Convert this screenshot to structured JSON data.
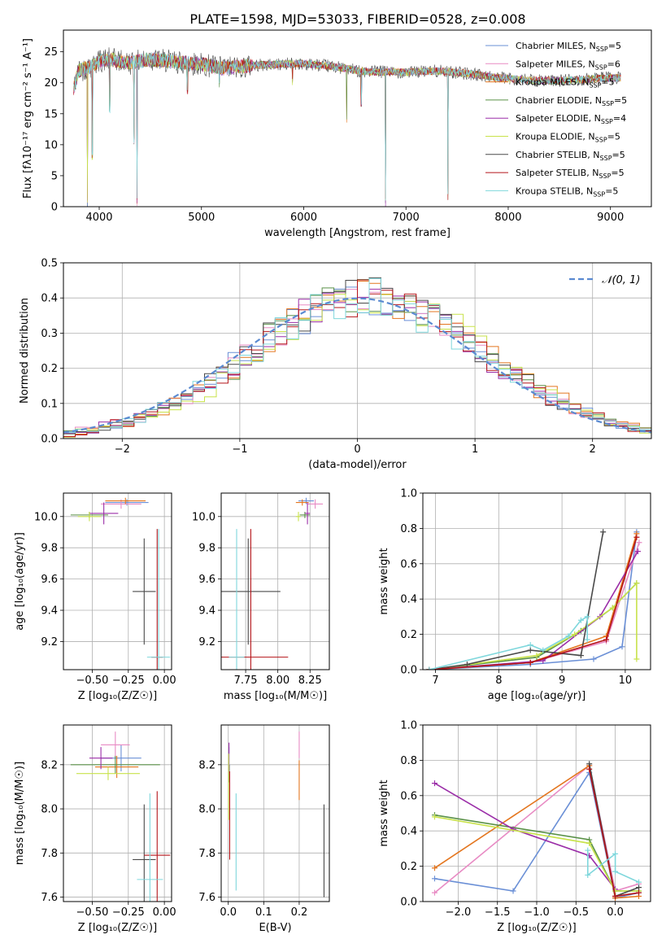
{
  "title": "PLATE=1598, MJD=53033, FIBERID=0528, z=0.008",
  "colors": [
    "#6a8fd6",
    "#e88bc4",
    "#e4761f",
    "#5a9148",
    "#9b2ea8",
    "#c8e24a",
    "#4a4a4a",
    "#b5151a",
    "#7fd7dc"
  ],
  "chart_data": [
    {
      "type": "line",
      "panel": "spectrum",
      "xlabel": "wavelength [Angstrom, rest frame]",
      "ylabel": "Flux [fλ10⁻¹⁷ erg cm⁻² s⁻¹ A⁻¹]",
      "xlim": [
        3650,
        9400
      ],
      "ylim": [
        0,
        28.5
      ],
      "xticks": [
        4000,
        5000,
        6000,
        7000,
        8000,
        9000
      ],
      "yticks": [
        0,
        5,
        10,
        15,
        20,
        25
      ],
      "grid": false,
      "legend_position": "top-right",
      "legend": [
        {
          "label": "Chabrier MILES, N",
          "sub": "SSP",
          "value": "=5"
        },
        {
          "label": "Salpeter MILES, N",
          "sub": "SSP",
          "value": "=6"
        },
        {
          "label": "Kroupa MILES, N",
          "sub": "SSP",
          "value": "=5"
        },
        {
          "label": "Chabrier ELODIE, N",
          "sub": "SSP",
          "value": "=5"
        },
        {
          "label": "Salpeter ELODIE, N",
          "sub": "SSP",
          "value": "=4"
        },
        {
          "label": "Kroupa ELODIE, N",
          "sub": "SSP",
          "value": "=5"
        },
        {
          "label": "Chabrier STELIB, N",
          "sub": "SSP",
          "value": "=5"
        },
        {
          "label": "Salpeter STELIB, N",
          "sub": "SSP",
          "value": "=5"
        },
        {
          "label": "Kroupa STELIB, N",
          "sub": "SSP",
          "value": "=5"
        }
      ],
      "continuum": [
        [
          3750,
          19
        ],
        [
          3800,
          22
        ],
        [
          3900,
          22.5
        ],
        [
          4000,
          23.5
        ],
        [
          4100,
          23.8
        ],
        [
          4300,
          23.2
        ],
        [
          4500,
          23.8
        ],
        [
          4700,
          23.4
        ],
        [
          5000,
          23
        ],
        [
          5200,
          22.3
        ],
        [
          5500,
          22.8
        ],
        [
          5800,
          23
        ],
        [
          6000,
          23.1
        ],
        [
          6300,
          22.6
        ],
        [
          6600,
          21.8
        ],
        [
          7000,
          21.7
        ],
        [
          7300,
          21.9
        ],
        [
          7600,
          21.5
        ],
        [
          7900,
          20.8
        ],
        [
          8200,
          20.4
        ],
        [
          8500,
          20.3
        ],
        [
          8800,
          20.6
        ],
        [
          9000,
          20.8
        ],
        [
          9100,
          20.8
        ]
      ],
      "spikes": [
        [
          3885,
          0
        ],
        [
          3933,
          7.5
        ],
        [
          4101,
          15
        ],
        [
          4340,
          10
        ],
        [
          4370,
          0
        ],
        [
          4861,
          18
        ],
        [
          5175,
          19
        ],
        [
          5890,
          19.5
        ],
        [
          6420,
          13
        ],
        [
          6563,
          15.5
        ],
        [
          6800,
          0
        ],
        [
          7410,
          1
        ]
      ]
    },
    {
      "type": "histogram",
      "panel": "residuals",
      "xlabel": "(data-model)/error",
      "ylabel": "Normed distribution",
      "xlim": [
        -2.5,
        2.5
      ],
      "ylim": [
        0,
        0.5
      ],
      "xticks": [
        -2,
        -1,
        0,
        1,
        2
      ],
      "yticks": [
        0.0,
        0.1,
        0.2,
        0.3,
        0.4,
        0.5
      ],
      "grid": true,
      "legend_position": "top-right",
      "reference_label": "𝒩(0, 1)",
      "bin_width": 0.1
    },
    {
      "type": "scatter",
      "panel": "age-Z",
      "xlabel": "Z [log₁₀(Z/Z☉)]",
      "ylabel": "age  [log₁₀(age/yr)]",
      "xlim": [
        -0.7,
        0.05
      ],
      "ylim": [
        9.02,
        10.15
      ],
      "xticks": [
        -0.5,
        -0.25,
        0.0
      ],
      "yticks": [
        9.2,
        9.4,
        9.6,
        9.8,
        10.0
      ],
      "grid": true,
      "points": [
        {
          "x": -0.26,
          "y": 10.09,
          "ex": 0.15,
          "ey": 0.02
        },
        {
          "x": -0.3,
          "y": 10.08,
          "ex": 0.14,
          "ey": 0.03
        },
        {
          "x": -0.27,
          "y": 10.1,
          "ex": 0.14,
          "ey": 0.02
        },
        {
          "x": -0.52,
          "y": 10.01,
          "ex": 0.13,
          "ey": 0.02
        },
        {
          "x": -0.42,
          "y": 10.02,
          "ex": 0.1,
          "ey": 0.07
        },
        {
          "x": -0.52,
          "y": 10.0,
          "ex": 0.08,
          "ey": 0.03
        },
        {
          "x": -0.14,
          "y": 9.52,
          "ex": 0.08,
          "ey": 0.34
        },
        {
          "x": -0.05,
          "y": 9.1,
          "ex": 0.04,
          "ey": 0.82
        },
        {
          "x": -0.04,
          "y": 9.1,
          "ex": 0.08,
          "ey": 0.82
        }
      ]
    },
    {
      "type": "scatter",
      "panel": "age-mass",
      "xlabel": "mass [log₁₀(M/M☉)]",
      "ylabel": "",
      "xlim": [
        7.56,
        8.4
      ],
      "ylim": [
        9.02,
        10.15
      ],
      "xticks": [
        7.75,
        8.0,
        8.25
      ],
      "yticks": [
        9.2,
        9.4,
        9.6,
        9.8,
        10.0
      ],
      "grid": true,
      "points": [
        {
          "x": 8.22,
          "y": 10.1,
          "ex": 0.06,
          "ey": 0.02
        },
        {
          "x": 8.29,
          "y": 10.08,
          "ex": 0.06,
          "ey": 0.03
        },
        {
          "x": 8.19,
          "y": 10.09,
          "ex": 0.05,
          "ey": 0.02
        },
        {
          "x": 8.21,
          "y": 10.01,
          "ex": 0.04,
          "ey": 0.02
        },
        {
          "x": 8.23,
          "y": 10.02,
          "ex": 0.02,
          "ey": 0.07
        },
        {
          "x": 8.16,
          "y": 10.0,
          "ex": 0.02,
          "ey": 0.03
        },
        {
          "x": 7.77,
          "y": 9.52,
          "ex": 0.25,
          "ey": 0.34
        },
        {
          "x": 7.79,
          "y": 9.1,
          "ex": 0.29,
          "ey": 0.82
        },
        {
          "x": 7.68,
          "y": 9.1,
          "ex": 0.06,
          "ey": 0.82
        }
      ]
    },
    {
      "type": "line",
      "panel": "weight-age",
      "xlabel": "age  [log₁₀(age/yr)]",
      "ylabel": "mass weight",
      "xlim": [
        6.8,
        10.4
      ],
      "ylim": [
        0,
        1
      ],
      "xticks": [
        7,
        8,
        9,
        10
      ],
      "yticks": [
        0.0,
        0.2,
        0.4,
        0.6,
        0.8,
        1.0
      ],
      "grid": true,
      "series": [
        {
          "values": [
            [
              6.9,
              0
            ],
            [
              8.5,
              0.03
            ],
            [
              9.5,
              0.06
            ],
            [
              9.95,
              0.13
            ],
            [
              10.18,
              0.78
            ]
          ]
        },
        {
          "values": [
            [
              6.9,
              0
            ],
            [
              8.5,
              0.04
            ],
            [
              9.7,
              0.16
            ],
            [
              10.22,
              0.72
            ]
          ]
        },
        {
          "values": [
            [
              6.9,
              0
            ],
            [
              8.5,
              0.04
            ],
            [
              9.7,
              0.19
            ],
            [
              10.18,
              0.77
            ]
          ]
        },
        {
          "values": [
            [
              6.9,
              0
            ],
            [
              8.6,
              0.07
            ],
            [
              9.3,
              0.22
            ],
            [
              9.8,
              0.35
            ],
            [
              10.18,
              0.49
            ]
          ]
        },
        {
          "values": [
            [
              6.9,
              0
            ],
            [
              8.7,
              0.05
            ],
            [
              9.6,
              0.3
            ],
            [
              10.2,
              0.67
            ]
          ]
        },
        {
          "values": [
            [
              6.9,
              0
            ],
            [
              8.6,
              0.08
            ],
            [
              9.2,
              0.2
            ],
            [
              9.8,
              0.35
            ],
            [
              10.18,
              0.49
            ],
            [
              10.18,
              0.06
            ]
          ]
        },
        {
          "values": [
            [
              6.9,
              0
            ],
            [
              7.5,
              0.03
            ],
            [
              8.5,
              0.11
            ],
            [
              9.3,
              0.08
            ],
            [
              9.65,
              0.78
            ]
          ]
        },
        {
          "values": [
            [
              6.9,
              0
            ],
            [
              8.5,
              0.04
            ],
            [
              9.7,
              0.17
            ],
            [
              10.18,
              0.75
            ]
          ]
        },
        {
          "values": [
            [
              6.9,
              0
            ],
            [
              8.5,
              0.14
            ],
            [
              8.7,
              0.11
            ],
            [
              9.1,
              0.19
            ],
            [
              9.3,
              0.28
            ],
            [
              9.4,
              0.3
            ],
            [
              9.4,
              0.17
            ]
          ]
        }
      ]
    },
    {
      "type": "scatter",
      "panel": "mass-Z",
      "xlabel": "Z [log₁₀(Z/Z☉)]",
      "ylabel": "mass [log₁₀(M/M☉)]",
      "xlim": [
        -0.7,
        0.05
      ],
      "ylim": [
        7.58,
        8.38
      ],
      "xticks": [
        -0.5,
        -0.25,
        0.0
      ],
      "yticks": [
        7.6,
        7.8,
        8.0,
        8.2
      ],
      "grid": true,
      "points": [
        {
          "x": -0.3,
          "y": 8.23,
          "ex": 0.14,
          "ey": 0.06
        },
        {
          "x": -0.34,
          "y": 8.29,
          "ex": 0.1,
          "ey": 0.06
        },
        {
          "x": -0.33,
          "y": 8.19,
          "ex": 0.15,
          "ey": 0.05
        },
        {
          "x": -0.34,
          "y": 8.2,
          "ex": 0.31,
          "ey": 0.04
        },
        {
          "x": -0.44,
          "y": 8.23,
          "ex": 0.08,
          "ey": 0.05
        },
        {
          "x": -0.39,
          "y": 8.16,
          "ex": 0.22,
          "ey": 0.03
        },
        {
          "x": -0.14,
          "y": 7.77,
          "ex": 0.08,
          "ey": 0.25
        },
        {
          "x": -0.05,
          "y": 7.79,
          "ex": 0.09,
          "ey": 0.29
        },
        {
          "x": -0.1,
          "y": 7.68,
          "ex": 0.09,
          "ey": 0.39
        }
      ]
    },
    {
      "type": "scatter",
      "panel": "mass-EBV",
      "xlabel": "E(B-V)",
      "ylabel": "",
      "xlim": [
        -0.02,
        0.285
      ],
      "ylim": [
        7.58,
        8.38
      ],
      "xticks": [
        0.0,
        0.1,
        0.2
      ],
      "yticks": [
        7.6,
        7.8,
        8.0,
        8.2
      ],
      "grid": true,
      "points": [
        {
          "x": 0.002,
          "y": 8.22,
          "ey": 0.06
        },
        {
          "x": 0.2,
          "y": 8.29,
          "ey": 0.06
        },
        {
          "x": 0.2,
          "y": 8.13,
          "ey": 0.09
        },
        {
          "x": 0.003,
          "y": 8.16,
          "ey": 0.04
        },
        {
          "x": 0.002,
          "y": 8.23,
          "ey": 0.07
        },
        {
          "x": 0.001,
          "y": 8.1,
          "ey": 0.15
        },
        {
          "x": 0.27,
          "y": 7.81,
          "ey": 0.21
        },
        {
          "x": 0.004,
          "y": 7.97,
          "ey": 0.2
        },
        {
          "x": 0.022,
          "y": 7.85,
          "ey": 0.22
        }
      ]
    },
    {
      "type": "line",
      "panel": "weight-Z",
      "xlabel": "Z [log₁₀(Z/Z☉)]",
      "ylabel": "mass weight",
      "xlim": [
        -2.45,
        0.45
      ],
      "ylim": [
        0,
        1
      ],
      "xticks": [
        -2.0,
        -1.5,
        -1.0,
        -0.5,
        0.0
      ],
      "yticks": [
        0.0,
        0.2,
        0.4,
        0.6,
        0.8,
        1.0
      ],
      "grid": true,
      "series": [
        {
          "values": [
            [
              -2.3,
              0.13
            ],
            [
              -1.3,
              0.06
            ],
            [
              -0.33,
              0.73
            ],
            [
              0,
              0.02
            ],
            [
              0.3,
              0.05
            ]
          ]
        },
        {
          "values": [
            [
              -2.3,
              0.05
            ],
            [
              -0.33,
              0.77
            ],
            [
              0,
              0.06
            ],
            [
              0.3,
              0.1
            ]
          ]
        },
        {
          "values": [
            [
              -2.3,
              0.19
            ],
            [
              -0.33,
              0.77
            ],
            [
              0,
              0.02
            ],
            [
              0.3,
              0.03
            ]
          ]
        },
        {
          "values": [
            [
              -2.3,
              0.49
            ],
            [
              -0.33,
              0.35
            ],
            [
              0,
              0.06
            ],
            [
              0.3,
              0.06
            ]
          ]
        },
        {
          "values": [
            [
              -2.3,
              0.67
            ],
            [
              -1.3,
              0.41
            ],
            [
              -0.33,
              0.26
            ],
            [
              0,
              0.07
            ]
          ]
        },
        {
          "values": [
            [
              -2.3,
              0.48
            ],
            [
              -0.33,
              0.33
            ],
            [
              0,
              0.06
            ],
            [
              0.3,
              0.06
            ]
          ]
        },
        {
          "values": [
            [
              -0.33,
              0.78
            ],
            [
              0,
              0.03
            ],
            [
              0.3,
              0.08
            ]
          ]
        },
        {
          "values": [
            [
              -0.33,
              0.75
            ],
            [
              0,
              0.03
            ],
            [
              0.3,
              0.05
            ]
          ]
        },
        {
          "values": [
            [
              -0.35,
              0.29
            ],
            [
              -0.35,
              0.15
            ],
            [
              0,
              0.27
            ],
            [
              0,
              0.17
            ],
            [
              0.3,
              0.11
            ]
          ]
        }
      ]
    }
  ]
}
